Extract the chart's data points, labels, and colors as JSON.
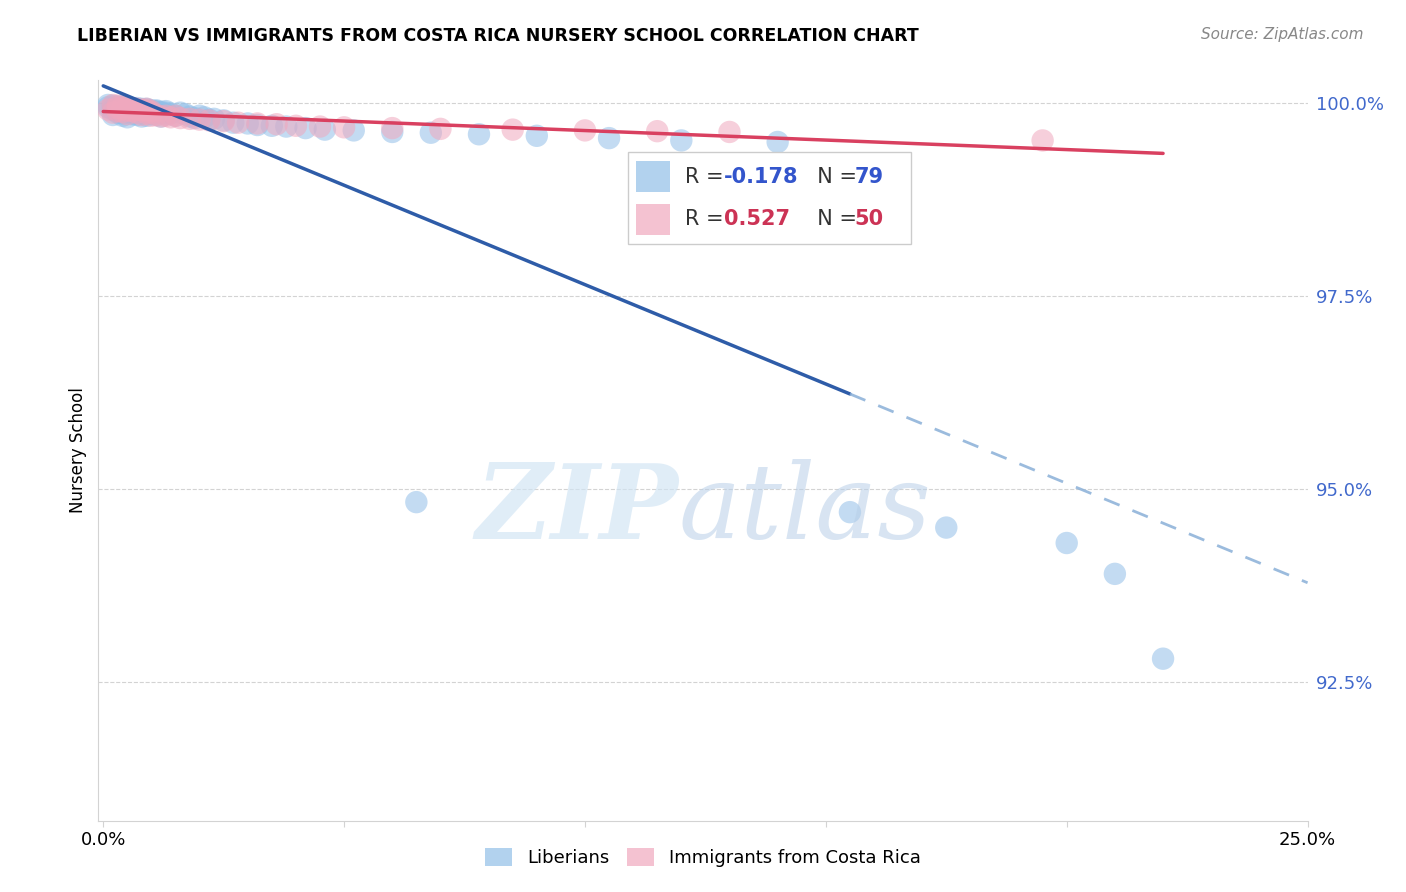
{
  "title": "LIBERIAN VS IMMIGRANTS FROM COSTA RICA NURSERY SCHOOL CORRELATION CHART",
  "source": "Source: ZipAtlas.com",
  "ylabel": "Nursery School",
  "xlim": [
    0.0,
    0.25
  ],
  "ylim": [
    0.907,
    1.003
  ],
  "yticks": [
    0.925,
    0.95,
    0.975,
    1.0
  ],
  "ytick_labels": [
    "92.5%",
    "95.0%",
    "97.5%",
    "100.0%"
  ],
  "blue_color": "#92bfe8",
  "pink_color": "#f0a8be",
  "trend_blue_solid": "#2e5ca8",
  "trend_blue_dash": "#8ab0d8",
  "trend_pink_color": "#d94060",
  "watermark_zip": "ZIP",
  "watermark_atlas": "atlas",
  "blue_scatter_x": [
    0.001,
    0.002,
    0.002,
    0.003,
    0.003,
    0.003,
    0.004,
    0.004,
    0.004,
    0.004,
    0.005,
    0.005,
    0.005,
    0.005,
    0.006,
    0.006,
    0.006,
    0.007,
    0.007,
    0.007,
    0.008,
    0.008,
    0.008,
    0.009,
    0.009,
    0.009,
    0.01,
    0.01,
    0.011,
    0.011,
    0.012,
    0.012,
    0.013,
    0.013,
    0.014,
    0.015,
    0.016,
    0.017,
    0.018,
    0.019,
    0.02,
    0.021,
    0.022,
    0.023,
    0.025,
    0.027,
    0.03,
    0.032,
    0.035,
    0.038,
    0.042,
    0.046,
    0.052,
    0.06,
    0.068,
    0.078,
    0.09,
    0.105,
    0.12,
    0.14,
    0.001,
    0.002,
    0.003,
    0.004,
    0.005,
    0.006,
    0.007,
    0.008,
    0.009,
    0.01,
    0.011,
    0.012,
    0.013,
    0.065,
    0.155,
    0.175,
    0.2,
    0.21,
    0.22
  ],
  "blue_scatter_y": [
    0.9995,
    0.9985,
    0.9992,
    0.999,
    0.9988,
    0.9993,
    0.9987,
    0.999,
    0.9984,
    0.9996,
    0.9982,
    0.9989,
    0.9994,
    0.9991,
    0.9986,
    0.9993,
    0.9988,
    0.9985,
    0.999,
    0.9992,
    0.9987,
    0.9983,
    0.9991,
    0.9988,
    0.9984,
    0.9993,
    0.9986,
    0.9989,
    0.9985,
    0.9991,
    0.9983,
    0.9988,
    0.9986,
    0.999,
    0.9987,
    0.9984,
    0.9988,
    0.9986,
    0.9983,
    0.9981,
    0.9984,
    0.9982,
    0.9979,
    0.998,
    0.9978,
    0.9975,
    0.9974,
    0.9972,
    0.9971,
    0.997,
    0.9968,
    0.9966,
    0.9965,
    0.9963,
    0.9962,
    0.996,
    0.9958,
    0.9955,
    0.9952,
    0.995,
    0.9998,
    0.9997,
    0.9996,
    0.9995,
    0.9994,
    0.9993,
    0.9994,
    0.9993,
    0.9992,
    0.9991,
    0.999,
    0.9989,
    0.9988,
    0.9483,
    0.947,
    0.945,
    0.943,
    0.939,
    0.928
  ],
  "pink_scatter_x": [
    0.001,
    0.002,
    0.003,
    0.003,
    0.004,
    0.004,
    0.005,
    0.005,
    0.006,
    0.006,
    0.007,
    0.007,
    0.008,
    0.008,
    0.009,
    0.009,
    0.01,
    0.01,
    0.011,
    0.012,
    0.013,
    0.014,
    0.015,
    0.016,
    0.018,
    0.02,
    0.022,
    0.025,
    0.028,
    0.032,
    0.036,
    0.04,
    0.045,
    0.05,
    0.06,
    0.07,
    0.085,
    0.1,
    0.115,
    0.13,
    0.002,
    0.003,
    0.004,
    0.005,
    0.006,
    0.007,
    0.008,
    0.009,
    0.01,
    0.195
  ],
  "pink_scatter_y": [
    0.9992,
    0.9988,
    0.999,
    0.9994,
    0.9989,
    0.9993,
    0.9991,
    0.9986,
    0.999,
    0.9994,
    0.9988,
    0.9992,
    0.9985,
    0.9991,
    0.9987,
    0.9993,
    0.9988,
    0.9984,
    0.9985,
    0.9983,
    0.9984,
    0.9982,
    0.9984,
    0.9981,
    0.998,
    0.9979,
    0.9978,
    0.9977,
    0.9975,
    0.9974,
    0.9973,
    0.9971,
    0.997,
    0.9969,
    0.9968,
    0.9967,
    0.9966,
    0.9965,
    0.9964,
    0.9963,
    0.9998,
    0.9997,
    0.9996,
    0.9995,
    0.9994,
    0.9993,
    0.9992,
    0.9991,
    0.999,
    0.9952
  ],
  "blue_trend_x0": 0.0,
  "blue_trend_x_solid_end": 0.155,
  "blue_trend_x_dash_end": 0.25,
  "pink_trend_x0": 0.0,
  "pink_trend_x_end": 0.22
}
